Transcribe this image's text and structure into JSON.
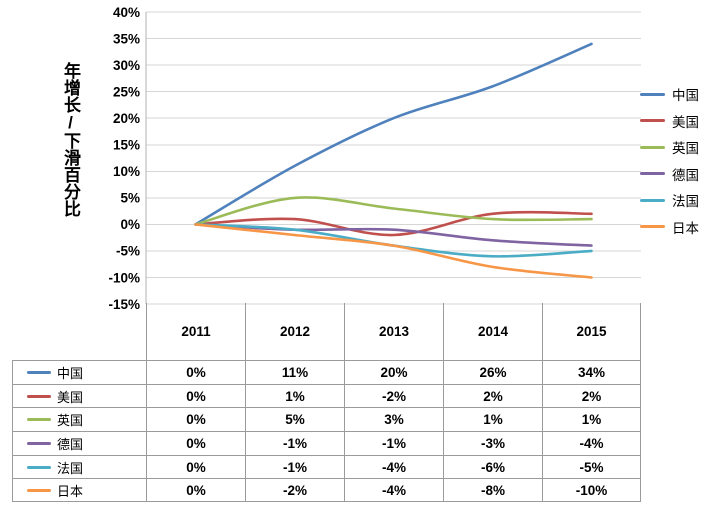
{
  "chart_data": {
    "type": "line",
    "title": "",
    "y_axis_title": "年增长/下滑百分比",
    "categories": [
      "2011",
      "2012",
      "2013",
      "2014",
      "2015"
    ],
    "series": [
      {
        "key": "china",
        "name": "中国",
        "color": "#4F81BD",
        "values": [
          0,
          11,
          20,
          26,
          34
        ]
      },
      {
        "key": "usa",
        "name": "美国",
        "color": "#C0504D",
        "values": [
          0,
          1,
          -2,
          2,
          2
        ]
      },
      {
        "key": "uk",
        "name": "英国",
        "color": "#9BBB59",
        "values": [
          0,
          5,
          3,
          1,
          1
        ]
      },
      {
        "key": "germany",
        "name": "德国",
        "color": "#8064A2",
        "values": [
          0,
          -1,
          -1,
          -3,
          -4
        ]
      },
      {
        "key": "france",
        "name": "法国",
        "color": "#4BACC6",
        "values": [
          0,
          -1,
          -4,
          -6,
          -5
        ]
      },
      {
        "key": "japan",
        "name": "日本",
        "color": "#F79646",
        "values": [
          0,
          -2,
          -4,
          -8,
          -10
        ]
      }
    ],
    "ylim": [
      -15,
      40
    ],
    "ytick_step": 5,
    "y_tick_labels": [
      "40%",
      "35%",
      "30%",
      "25%",
      "20%",
      "15%",
      "10%",
      "5%",
      "0%",
      "-5%",
      "-10%",
      "-15%"
    ],
    "grid": true,
    "smoothed": true,
    "legend_position": "right",
    "gridline_color": "#D6D6D6",
    "axis_line_color": "#B3B3B3"
  },
  "table": {
    "column_headers": [
      "2011",
      "2012",
      "2013",
      "2014",
      "2015"
    ],
    "rows": [
      {
        "key": "china",
        "label": "中国",
        "color": "#4F81BD",
        "values": [
          "0%",
          "11%",
          "20%",
          "26%",
          "34%"
        ]
      },
      {
        "key": "usa",
        "label": "美国",
        "color": "#C0504D",
        "values": [
          "0%",
          "1%",
          "-2%",
          "2%",
          "2%"
        ]
      },
      {
        "key": "uk",
        "label": "英国",
        "color": "#9BBB59",
        "values": [
          "0%",
          "5%",
          "3%",
          "1%",
          "1%"
        ]
      },
      {
        "key": "germany",
        "label": "德国",
        "color": "#8064A2",
        "values": [
          "0%",
          "-1%",
          "-1%",
          "-3%",
          "-4%"
        ]
      },
      {
        "key": "france",
        "label": "法国",
        "color": "#4BACC6",
        "values": [
          "0%",
          "-1%",
          "-4%",
          "-6%",
          "-5%"
        ]
      },
      {
        "key": "japan",
        "label": "日本",
        "color": "#F79646",
        "values": [
          "0%",
          "-2%",
          "-4%",
          "-8%",
          "-10%"
        ]
      }
    ]
  }
}
